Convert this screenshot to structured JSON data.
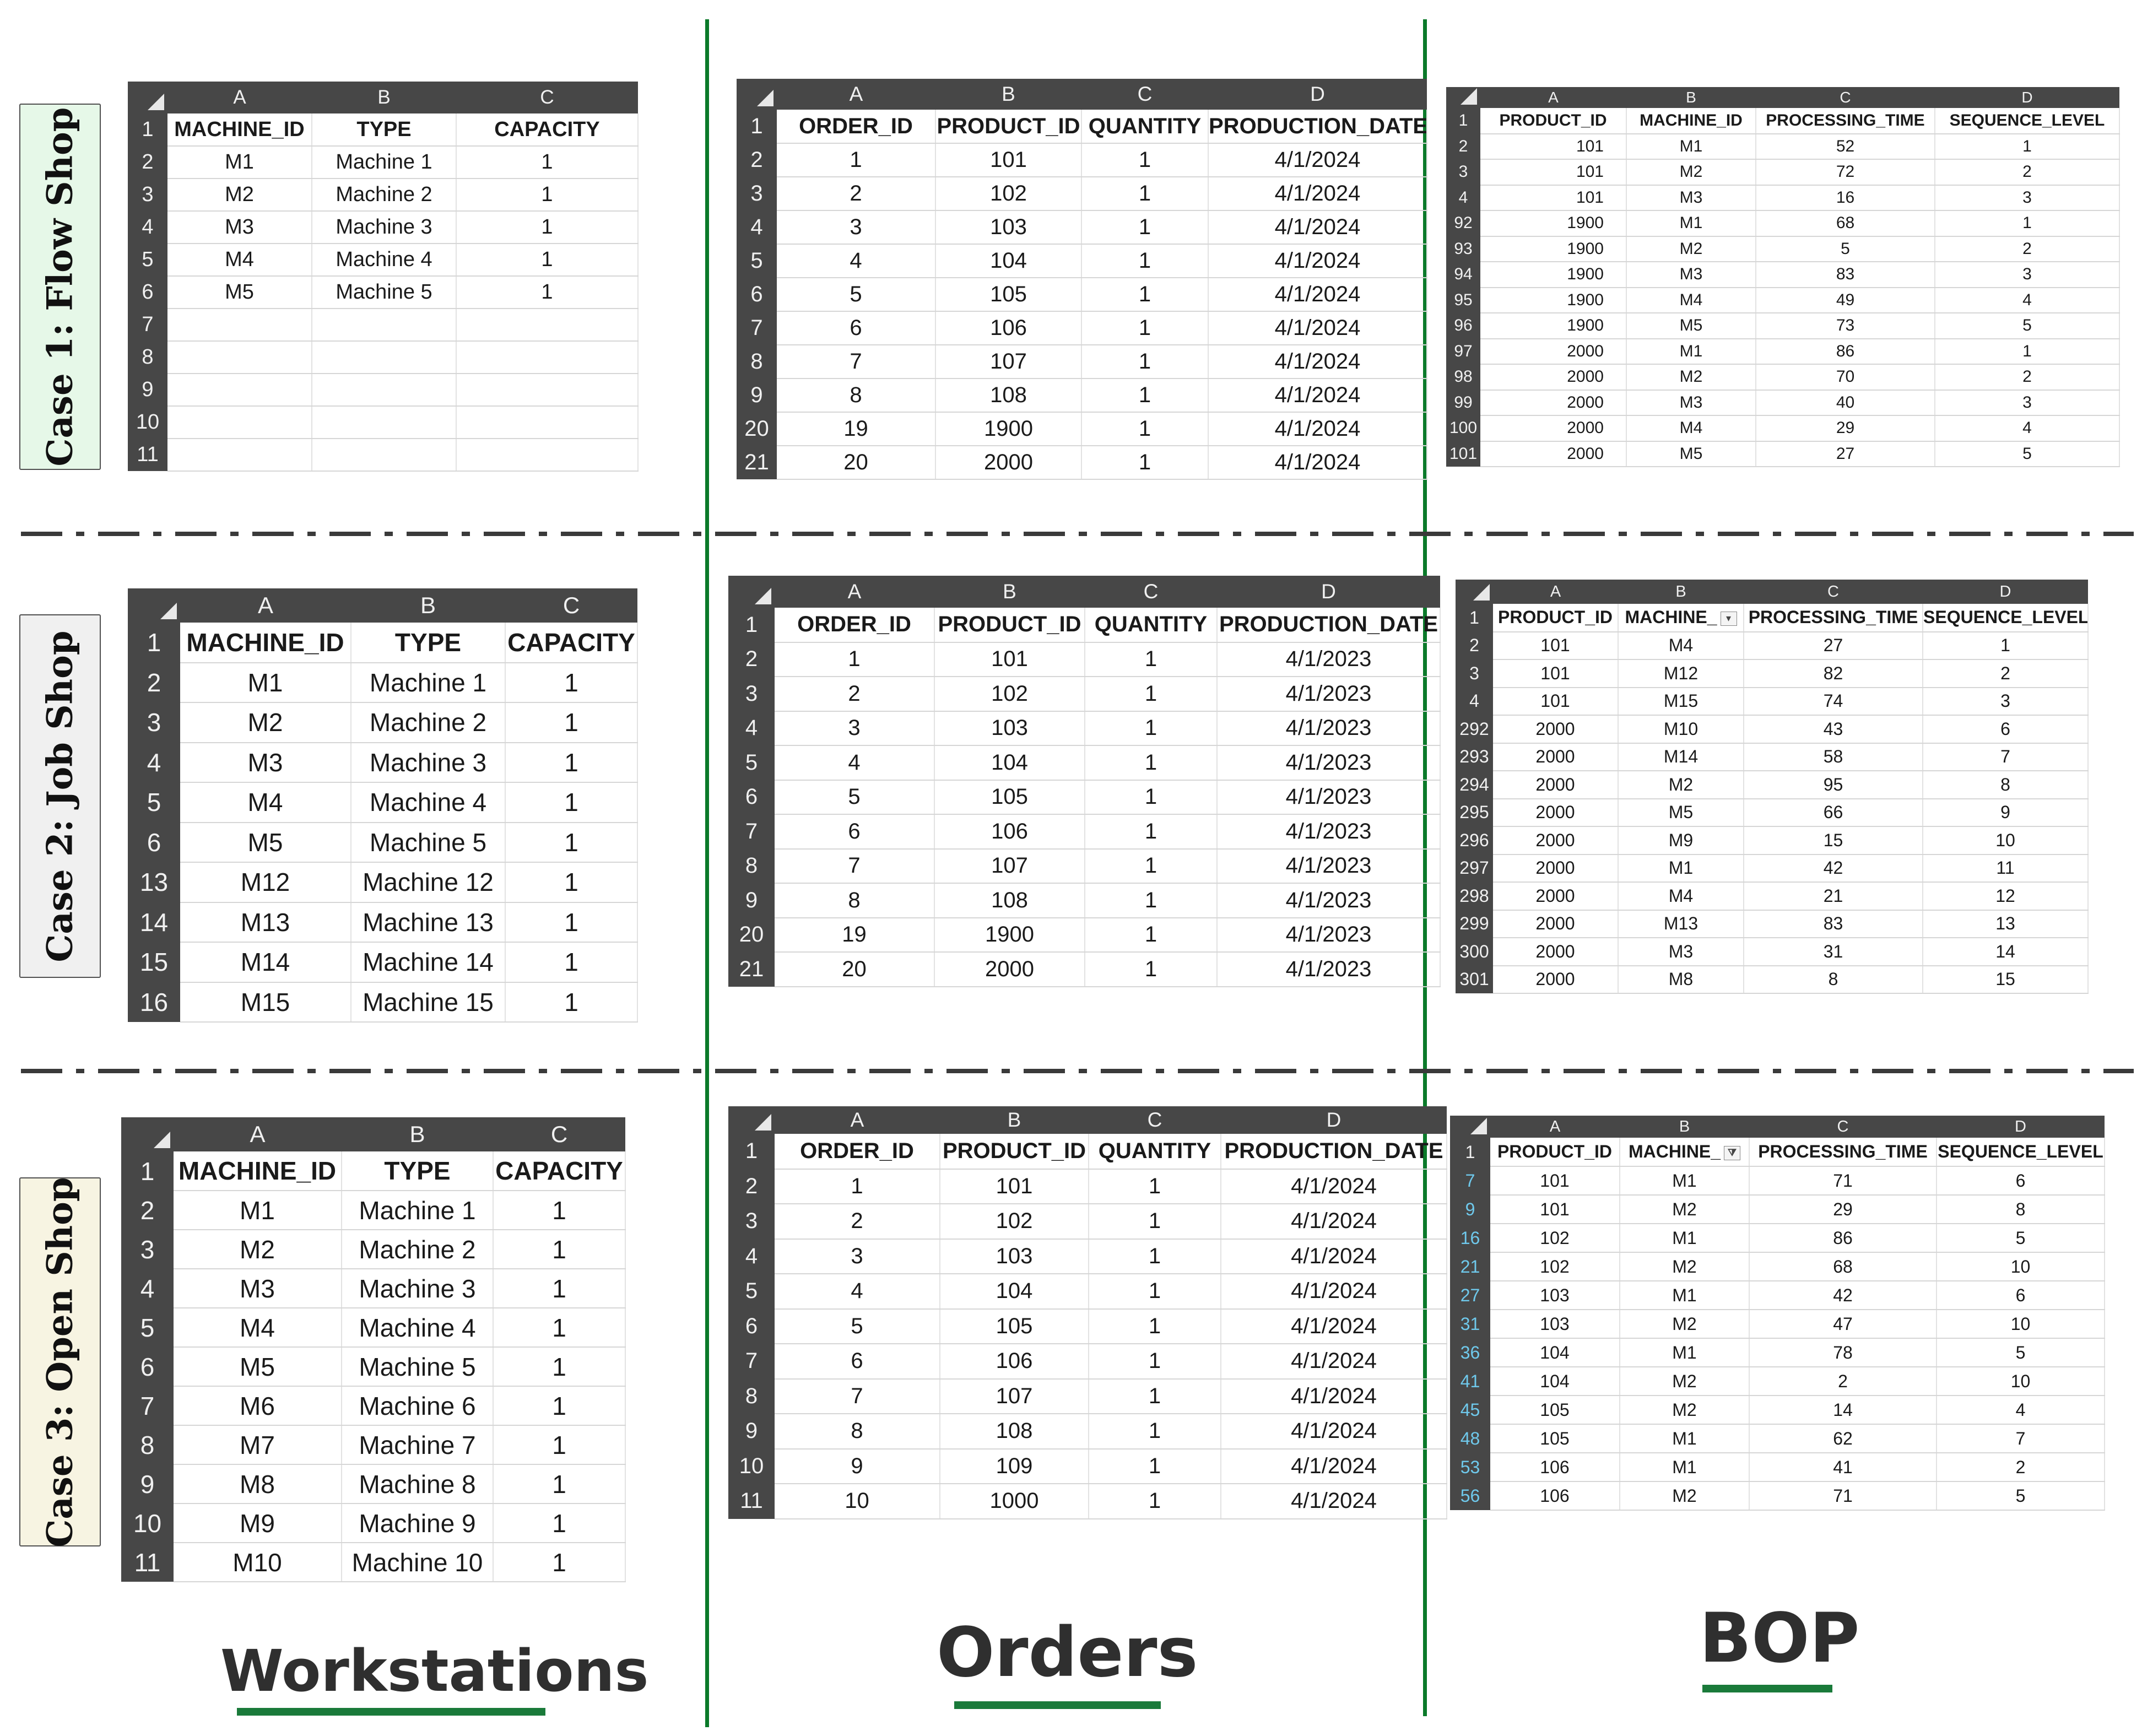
{
  "cases": [
    {
      "label": "Case 1: Flow Shop",
      "bg": "#e6f8e8",
      "workstations": {
        "cols": [
          "A",
          "B",
          "C"
        ],
        "rows": [
          {
            "n": "1",
            "cells": [
              "MACHINE_ID",
              "TYPE",
              "CAPACITY"
            ]
          },
          {
            "n": "2",
            "cells": [
              "M1",
              "Machine 1",
              "1"
            ]
          },
          {
            "n": "3",
            "cells": [
              "M2",
              "Machine 2",
              "1"
            ]
          },
          {
            "n": "4",
            "cells": [
              "M3",
              "Machine 3",
              "1"
            ]
          },
          {
            "n": "5",
            "cells": [
              "M4",
              "Machine 4",
              "1"
            ]
          },
          {
            "n": "6",
            "cells": [
              "M5",
              "Machine 5",
              "1"
            ]
          },
          {
            "n": "7",
            "cells": [
              "",
              "",
              ""
            ]
          },
          {
            "n": "8",
            "cells": [
              "",
              "",
              ""
            ]
          },
          {
            "n": "9",
            "cells": [
              "",
              "",
              ""
            ]
          },
          {
            "n": "10",
            "cells": [
              "",
              "",
              ""
            ]
          },
          {
            "n": "11",
            "cells": [
              "",
              "",
              ""
            ]
          }
        ]
      },
      "orders": {
        "cols": [
          "A",
          "B",
          "C",
          "D"
        ],
        "rows": [
          {
            "n": "1",
            "cells": [
              "ORDER_ID",
              "PRODUCT_ID",
              "QUANTITY",
              "PRODUCTION_DATE"
            ]
          },
          {
            "n": "2",
            "cells": [
              "1",
              "101",
              "1",
              "4/1/2024"
            ]
          },
          {
            "n": "3",
            "cells": [
              "2",
              "102",
              "1",
              "4/1/2024"
            ]
          },
          {
            "n": "4",
            "cells": [
              "3",
              "103",
              "1",
              "4/1/2024"
            ]
          },
          {
            "n": "5",
            "cells": [
              "4",
              "104",
              "1",
              "4/1/2024"
            ]
          },
          {
            "n": "6",
            "cells": [
              "5",
              "105",
              "1",
              "4/1/2024"
            ]
          },
          {
            "n": "7",
            "cells": [
              "6",
              "106",
              "1",
              "4/1/2024"
            ]
          },
          {
            "n": "8",
            "cells": [
              "7",
              "107",
              "1",
              "4/1/2024"
            ]
          },
          {
            "n": "9",
            "cells": [
              "8",
              "108",
              "1",
              "4/1/2024"
            ]
          },
          {
            "n": "20",
            "cells": [
              "19",
              "1900",
              "1",
              "4/1/2024"
            ]
          },
          {
            "n": "21",
            "cells": [
              "20",
              "2000",
              "1",
              "4/1/2024"
            ]
          }
        ]
      },
      "bop": {
        "cols": [
          "A",
          "B",
          "C",
          "D"
        ],
        "rows": [
          {
            "n": "1",
            "cells": [
              "PRODUCT_ID",
              "MACHINE_ID",
              "PROCESSING_TIME",
              "SEQUENCE_LEVEL"
            ]
          },
          {
            "n": "2",
            "cells": [
              "101",
              "M1",
              "52",
              "1"
            ]
          },
          {
            "n": "3",
            "cells": [
              "101",
              "M2",
              "72",
              "2"
            ]
          },
          {
            "n": "4",
            "cells": [
              "101",
              "M3",
              "16",
              "3"
            ]
          },
          {
            "n": "92",
            "cells": [
              "1900",
              "M1",
              "68",
              "1"
            ]
          },
          {
            "n": "93",
            "cells": [
              "1900",
              "M2",
              "5",
              "2"
            ]
          },
          {
            "n": "94",
            "cells": [
              "1900",
              "M3",
              "83",
              "3"
            ]
          },
          {
            "n": "95",
            "cells": [
              "1900",
              "M4",
              "49",
              "4"
            ]
          },
          {
            "n": "96",
            "cells": [
              "1900",
              "M5",
              "73",
              "5"
            ]
          },
          {
            "n": "97",
            "cells": [
              "2000",
              "M1",
              "86",
              "1"
            ]
          },
          {
            "n": "98",
            "cells": [
              "2000",
              "M2",
              "70",
              "2"
            ]
          },
          {
            "n": "99",
            "cells": [
              "2000",
              "M3",
              "40",
              "3"
            ]
          },
          {
            "n": "100",
            "cells": [
              "2000",
              "M4",
              "29",
              "4"
            ]
          },
          {
            "n": "101",
            "cells": [
              "2000",
              "M5",
              "27",
              "5"
            ]
          }
        ]
      }
    },
    {
      "label": "Case 2: Job Shop",
      "bg": "#f0f0f0",
      "workstations": {
        "cols": [
          "A",
          "B",
          "C"
        ],
        "rows": [
          {
            "n": "1",
            "cells": [
              "MACHINE_ID",
              "TYPE",
              "CAPACITY"
            ]
          },
          {
            "n": "2",
            "cells": [
              "M1",
              "Machine 1",
              "1"
            ]
          },
          {
            "n": "3",
            "cells": [
              "M2",
              "Machine 2",
              "1"
            ]
          },
          {
            "n": "4",
            "cells": [
              "M3",
              "Machine 3",
              "1"
            ]
          },
          {
            "n": "5",
            "cells": [
              "M4",
              "Machine 4",
              "1"
            ]
          },
          {
            "n": "6",
            "cells": [
              "M5",
              "Machine 5",
              "1"
            ]
          },
          {
            "n": "13",
            "cells": [
              "M12",
              "Machine 12",
              "1"
            ]
          },
          {
            "n": "14",
            "cells": [
              "M13",
              "Machine 13",
              "1"
            ]
          },
          {
            "n": "15",
            "cells": [
              "M14",
              "Machine 14",
              "1"
            ]
          },
          {
            "n": "16",
            "cells": [
              "M15",
              "Machine 15",
              "1"
            ]
          }
        ]
      },
      "orders": {
        "cols": [
          "A",
          "B",
          "C",
          "D"
        ],
        "rows": [
          {
            "n": "1",
            "cells": [
              "ORDER_ID",
              "PRODUCT_ID",
              "QUANTITY",
              "PRODUCTION_DATE"
            ]
          },
          {
            "n": "2",
            "cells": [
              "1",
              "101",
              "1",
              "4/1/2023"
            ]
          },
          {
            "n": "3",
            "cells": [
              "2",
              "102",
              "1",
              "4/1/2023"
            ]
          },
          {
            "n": "4",
            "cells": [
              "3",
              "103",
              "1",
              "4/1/2023"
            ]
          },
          {
            "n": "5",
            "cells": [
              "4",
              "104",
              "1",
              "4/1/2023"
            ]
          },
          {
            "n": "6",
            "cells": [
              "5",
              "105",
              "1",
              "4/1/2023"
            ]
          },
          {
            "n": "7",
            "cells": [
              "6",
              "106",
              "1",
              "4/1/2023"
            ]
          },
          {
            "n": "8",
            "cells": [
              "7",
              "107",
              "1",
              "4/1/2023"
            ]
          },
          {
            "n": "9",
            "cells": [
              "8",
              "108",
              "1",
              "4/1/2023"
            ]
          },
          {
            "n": "20",
            "cells": [
              "19",
              "1900",
              "1",
              "4/1/2023"
            ]
          },
          {
            "n": "21",
            "cells": [
              "20",
              "2000",
              "1",
              "4/1/2023"
            ]
          }
        ]
      },
      "bop": {
        "cols": [
          "A",
          "B",
          "C",
          "D"
        ],
        "rows": [
          {
            "n": "1",
            "cells": [
              "PRODUCT_ID",
              "MACHINE_",
              "PROCESSING_TIME",
              "SEQUENCE_LEVEL"
            ]
          },
          {
            "n": "2",
            "cells": [
              "101",
              "M4",
              "27",
              "1"
            ]
          },
          {
            "n": "3",
            "cells": [
              "101",
              "M12",
              "82",
              "2"
            ]
          },
          {
            "n": "4",
            "cells": [
              "101",
              "M15",
              "74",
              "3"
            ]
          },
          {
            "n": "292",
            "cells": [
              "2000",
              "M10",
              "43",
              "6"
            ]
          },
          {
            "n": "293",
            "cells": [
              "2000",
              "M14",
              "58",
              "7"
            ]
          },
          {
            "n": "294",
            "cells": [
              "2000",
              "M2",
              "95",
              "8"
            ]
          },
          {
            "n": "295",
            "cells": [
              "2000",
              "M5",
              "66",
              "9"
            ]
          },
          {
            "n": "296",
            "cells": [
              "2000",
              "M9",
              "15",
              "10"
            ]
          },
          {
            "n": "297",
            "cells": [
              "2000",
              "M1",
              "42",
              "11"
            ]
          },
          {
            "n": "298",
            "cells": [
              "2000",
              "M4",
              "21",
              "12"
            ]
          },
          {
            "n": "299",
            "cells": [
              "2000",
              "M13",
              "83",
              "13"
            ]
          },
          {
            "n": "300",
            "cells": [
              "2000",
              "M3",
              "31",
              "14"
            ]
          },
          {
            "n": "301",
            "cells": [
              "2000",
              "M8",
              "8",
              "15"
            ]
          }
        ]
      }
    },
    {
      "label": "Case 3: Open Shop",
      "bg": "#f7f4e2",
      "workstations": {
        "cols": [
          "A",
          "B",
          "C"
        ],
        "rows": [
          {
            "n": "1",
            "cells": [
              "MACHINE_ID",
              "TYPE",
              "CAPACITY"
            ]
          },
          {
            "n": "2",
            "cells": [
              "M1",
              "Machine 1",
              "1"
            ]
          },
          {
            "n": "3",
            "cells": [
              "M2",
              "Machine 2",
              "1"
            ]
          },
          {
            "n": "4",
            "cells": [
              "M3",
              "Machine 3",
              "1"
            ]
          },
          {
            "n": "5",
            "cells": [
              "M4",
              "Machine 4",
              "1"
            ]
          },
          {
            "n": "6",
            "cells": [
              "M5",
              "Machine 5",
              "1"
            ]
          },
          {
            "n": "7",
            "cells": [
              "M6",
              "Machine 6",
              "1"
            ]
          },
          {
            "n": "8",
            "cells": [
              "M7",
              "Machine 7",
              "1"
            ]
          },
          {
            "n": "9",
            "cells": [
              "M8",
              "Machine 8",
              "1"
            ]
          },
          {
            "n": "10",
            "cells": [
              "M9",
              "Machine 9",
              "1"
            ]
          },
          {
            "n": "11",
            "cells": [
              "M10",
              "Machine 10",
              "1"
            ]
          }
        ]
      },
      "orders": {
        "cols": [
          "A",
          "B",
          "C",
          "D"
        ],
        "rows": [
          {
            "n": "1",
            "cells": [
              "ORDER_ID",
              "PRODUCT_ID",
              "QUANTITY",
              "PRODUCTION_DATE"
            ]
          },
          {
            "n": "2",
            "cells": [
              "1",
              "101",
              "1",
              "4/1/2024"
            ]
          },
          {
            "n": "3",
            "cells": [
              "2",
              "102",
              "1",
              "4/1/2024"
            ]
          },
          {
            "n": "4",
            "cells": [
              "3",
              "103",
              "1",
              "4/1/2024"
            ]
          },
          {
            "n": "5",
            "cells": [
              "4",
              "104",
              "1",
              "4/1/2024"
            ]
          },
          {
            "n": "6",
            "cells": [
              "5",
              "105",
              "1",
              "4/1/2024"
            ]
          },
          {
            "n": "7",
            "cells": [
              "6",
              "106",
              "1",
              "4/1/2024"
            ]
          },
          {
            "n": "8",
            "cells": [
              "7",
              "107",
              "1",
              "4/1/2024"
            ]
          },
          {
            "n": "9",
            "cells": [
              "8",
              "108",
              "1",
              "4/1/2024"
            ]
          },
          {
            "n": "10",
            "cells": [
              "9",
              "109",
              "1",
              "4/1/2024"
            ]
          },
          {
            "n": "11",
            "cells": [
              "10",
              "1000",
              "1",
              "4/1/2024"
            ]
          }
        ]
      },
      "bop": {
        "cols": [
          "A",
          "B",
          "C",
          "D"
        ],
        "rows": [
          {
            "n": "1",
            "cells": [
              "PRODUCT_ID",
              "MACHINE_",
              "PROCESSING_TIME",
              "SEQUENCE_LEVEL"
            ]
          },
          {
            "n": "7",
            "cells": [
              "101",
              "M1",
              "71",
              "6"
            ]
          },
          {
            "n": "9",
            "cells": [
              "101",
              "M2",
              "29",
              "8"
            ]
          },
          {
            "n": "16",
            "cells": [
              "102",
              "M1",
              "86",
              "5"
            ]
          },
          {
            "n": "21",
            "cells": [
              "102",
              "M2",
              "68",
              "10"
            ]
          },
          {
            "n": "27",
            "cells": [
              "103",
              "M1",
              "42",
              "6"
            ]
          },
          {
            "n": "31",
            "cells": [
              "103",
              "M2",
              "47",
              "10"
            ]
          },
          {
            "n": "36",
            "cells": [
              "104",
              "M1",
              "78",
              "5"
            ]
          },
          {
            "n": "41",
            "cells": [
              "104",
              "M2",
              "2",
              "10"
            ]
          },
          {
            "n": "45",
            "cells": [
              "105",
              "M2",
              "14",
              "4"
            ]
          },
          {
            "n": "48",
            "cells": [
              "105",
              "M1",
              "62",
              "7"
            ]
          },
          {
            "n": "53",
            "cells": [
              "106",
              "M1",
              "41",
              "2"
            ]
          },
          {
            "n": "56",
            "cells": [
              "106",
              "M2",
              "71",
              "5"
            ]
          }
        ]
      }
    }
  ],
  "captions": {
    "workstations": "Workstations",
    "orders": "Orders",
    "bop": "BOP"
  },
  "filter_icons": {
    "case2": "dropdown-icon",
    "case3": "filter-funnel-icon"
  },
  "colors": {
    "divider": "#0b7a2a",
    "underline": "#1a7a3a",
    "header_bg": "#474747"
  }
}
